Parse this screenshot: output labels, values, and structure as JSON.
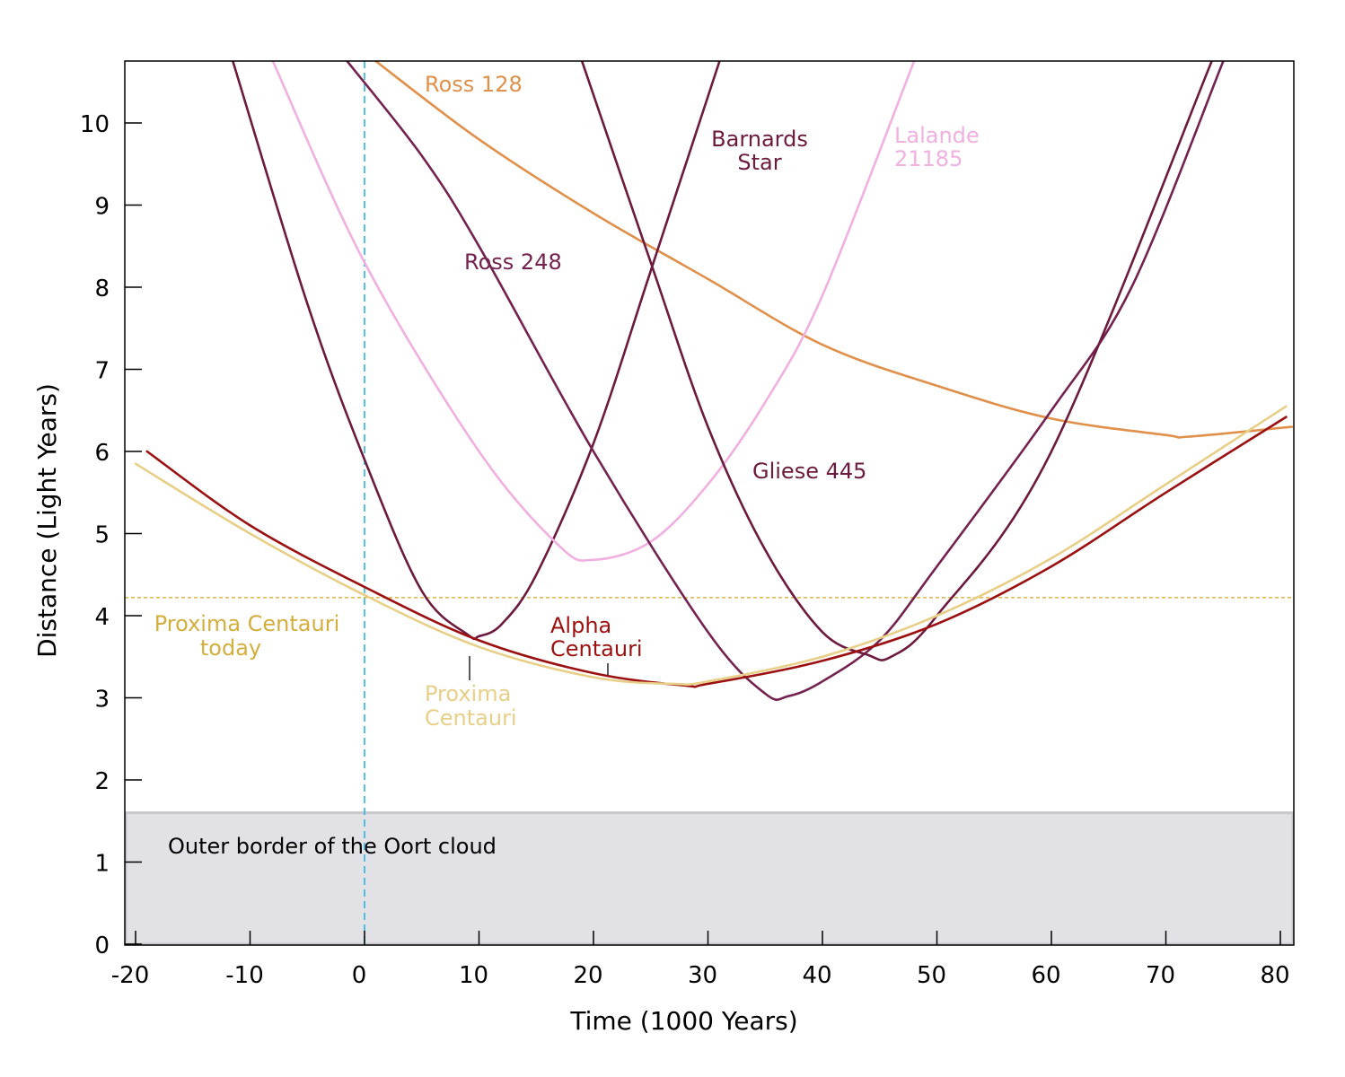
{
  "chart_data": {
    "type": "line",
    "xlabel": "Time (1000 Years)",
    "ylabel": "Distance (Light Years)",
    "xlim": [
      -21,
      81.5
    ],
    "ylim": [
      0,
      10.75
    ],
    "x_ticks": [
      "-20",
      "-10",
      "0",
      "10",
      "20",
      "30",
      "40",
      "50",
      "60",
      "70",
      "80"
    ],
    "y_ticks": [
      "0",
      "1",
      "2",
      "3",
      "4",
      "5",
      "6",
      "7",
      "8",
      "9",
      "10"
    ],
    "grid": false,
    "region": {
      "label": "Outer border of the Oort cloud",
      "y_from": 0,
      "y_to": 1.6,
      "color": "#e2e1e6"
    },
    "reference_lines": [
      {
        "orientation": "vertical",
        "x": 0,
        "color": "#29b6e0",
        "style": "dashed"
      },
      {
        "orientation": "horizontal",
        "y": 4.22,
        "color": "#d9a520",
        "style": "dashed"
      }
    ],
    "series": [
      {
        "name": "Ross 128",
        "label_lines": [
          "Ross 128"
        ],
        "color": "#e0904a",
        "x": [
          1,
          10,
          20,
          30,
          40,
          50,
          60,
          70,
          72,
          81
        ],
        "y": [
          10.75,
          9.8,
          8.9,
          8.1,
          7.3,
          6.8,
          6.4,
          6.2,
          6.18,
          6.3
        ]
      },
      {
        "name": "Barnards Star",
        "label_lines": [
          "Barnards",
          "Star"
        ],
        "color": "#6c1a3e",
        "x": [
          -11.5,
          -5,
          0,
          5,
          9,
          10,
          12,
          15,
          20,
          25,
          31
        ],
        "y": [
          10.75,
          7.8,
          5.9,
          4.3,
          3.77,
          3.75,
          3.9,
          4.5,
          6.1,
          8.2,
          10.75
        ]
      },
      {
        "name": "Lalande 21185",
        "label_lines": [
          "Lalande",
          "21185"
        ],
        "color": "#f0b0e0",
        "x": [
          -8,
          0,
          10,
          17,
          20,
          25,
          30,
          35,
          40,
          48
        ],
        "y": [
          10.75,
          8.3,
          6.0,
          4.85,
          4.68,
          4.9,
          5.6,
          6.6,
          7.9,
          10.75
        ]
      },
      {
        "name": "Ross 248",
        "label_lines": [
          "Ross 248"
        ],
        "color": "#742350",
        "x": [
          -1.5,
          5,
          10,
          20,
          30,
          35,
          37,
          40,
          45,
          50,
          60,
          67,
          75
        ],
        "y": [
          10.75,
          9.6,
          8.5,
          6.0,
          3.8,
          3.05,
          3.02,
          3.2,
          3.7,
          4.6,
          6.5,
          8.0,
          10.75
        ]
      },
      {
        "name": "Gliese 445",
        "label_lines": [
          "Gliese 445"
        ],
        "color": "#6c1a3e",
        "x": [
          19,
          25,
          30,
          35,
          40,
          44,
          46,
          50,
          60,
          74
        ],
        "y": [
          10.75,
          8.3,
          6.3,
          4.8,
          3.8,
          3.52,
          3.5,
          4.0,
          6.0,
          10.75
        ]
      },
      {
        "name": "Alpha Centauri",
        "label_lines": [
          "Alpha",
          "Centauri"
        ],
        "color": "#9b1010",
        "x": [
          -19,
          -10,
          0,
          10,
          20,
          28,
          30,
          40,
          50,
          60,
          70,
          80.5
        ],
        "y": [
          6.0,
          5.1,
          4.35,
          3.7,
          3.3,
          3.15,
          3.17,
          3.45,
          3.9,
          4.6,
          5.5,
          6.42
        ]
      },
      {
        "name": "Proxima Centauri",
        "label_lines": [
          "Proxima",
          "Centauri"
        ],
        "color": "#e8cf88",
        "x": [
          -20,
          -10,
          0,
          10,
          20,
          27,
          30,
          40,
          50,
          60,
          70,
          80.5
        ],
        "y": [
          5.85,
          5.0,
          4.25,
          3.62,
          3.25,
          3.17,
          3.2,
          3.5,
          4.0,
          4.7,
          5.6,
          6.55
        ]
      }
    ],
    "annotations": [
      {
        "name": "proxima-centauri-today",
        "lines": [
          "Proxima Centauri",
          "today"
        ],
        "color": "#d4ae3c"
      }
    ]
  }
}
